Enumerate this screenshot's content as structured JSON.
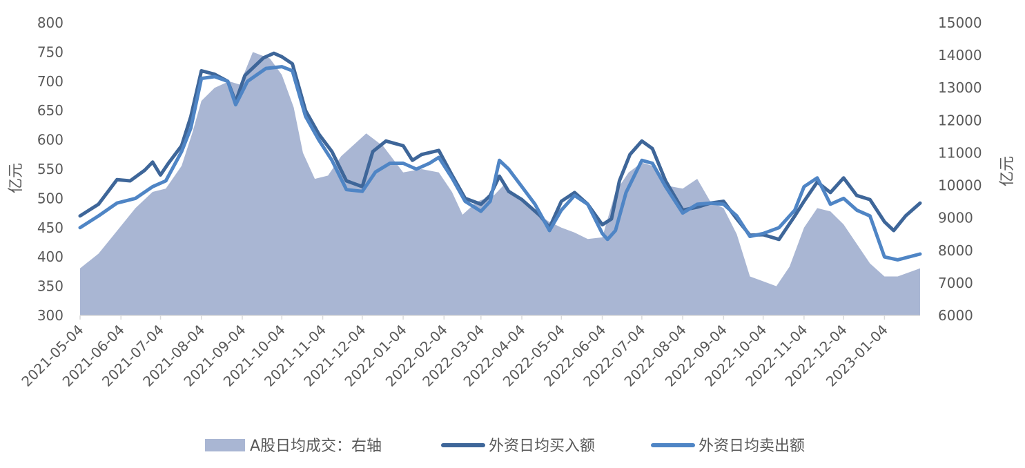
{
  "chart_data": {
    "type": "line",
    "y_left": {
      "label": "亿元",
      "ticks": [
        300,
        350,
        400,
        450,
        500,
        550,
        600,
        650,
        700,
        750,
        800
      ],
      "range": [
        300,
        800
      ]
    },
    "y_right": {
      "label": "亿元",
      "ticks": [
        6000,
        7000,
        8000,
        9000,
        10000,
        11000,
        12000,
        13000,
        14000,
        15000
      ],
      "range": [
        6000,
        15000
      ]
    },
    "x_ticks": [
      "2021-05-04",
      "2021-06-04",
      "2021-07-04",
      "2021-08-04",
      "2021-09-04",
      "2021-10-04",
      "2021-11-04",
      "2021-12-04",
      "2022-01-04",
      "2022-02-04",
      "2022-03-04",
      "2022-04-04",
      "2022-05-04",
      "2022-06-04",
      "2022-07-04",
      "2022-08-04",
      "2022-09-04",
      "2022-10-04",
      "2022-11-04",
      "2022-12-04",
      "2023-01-04"
    ],
    "x_range": [
      "2021-05-04",
      "2023-01-31"
    ],
    "grid": false,
    "legend_position": "bottom",
    "series": [
      {
        "name": "A股日均成交：右轴",
        "type": "area",
        "axis": "right",
        "color": "#a9b6d3",
        "points": [
          [
            "2021-05-04",
            7450
          ],
          [
            "2021-05-18",
            7900
          ],
          [
            "2021-06-01",
            8600
          ],
          [
            "2021-06-15",
            9300
          ],
          [
            "2021-06-28",
            9800
          ],
          [
            "2021-07-08",
            9900
          ],
          [
            "2021-07-20",
            10600
          ],
          [
            "2021-07-28",
            11600
          ],
          [
            "2021-08-04",
            12600
          ],
          [
            "2021-08-14",
            13000
          ],
          [
            "2021-08-25",
            13200
          ],
          [
            "2021-09-02",
            13100
          ],
          [
            "2021-09-12",
            14100
          ],
          [
            "2021-09-25",
            13900
          ],
          [
            "2021-10-04",
            13400
          ],
          [
            "2021-10-13",
            12400
          ],
          [
            "2021-10-20",
            11000
          ],
          [
            "2021-10-29",
            10200
          ],
          [
            "2021-11-08",
            10300
          ],
          [
            "2021-11-18",
            10900
          ],
          [
            "2021-11-29",
            11300
          ],
          [
            "2021-12-07",
            11600
          ],
          [
            "2021-12-20",
            11200
          ],
          [
            "2022-01-04",
            10400
          ],
          [
            "2022-01-18",
            10500
          ],
          [
            "2022-01-31",
            10400
          ],
          [
            "2022-02-10",
            9800
          ],
          [
            "2022-02-18",
            9100
          ],
          [
            "2022-03-01",
            9500
          ],
          [
            "2022-03-14",
            9700
          ],
          [
            "2022-03-21",
            10000
          ],
          [
            "2022-04-04",
            9600
          ],
          [
            "2022-04-14",
            9200
          ],
          [
            "2022-04-24",
            8900
          ],
          [
            "2022-05-04",
            8700
          ],
          [
            "2022-05-14",
            8550
          ],
          [
            "2022-05-24",
            8350
          ],
          [
            "2022-06-04",
            8400
          ],
          [
            "2022-06-14",
            9800
          ],
          [
            "2022-06-24",
            10400
          ],
          [
            "2022-07-04",
            10700
          ],
          [
            "2022-07-12",
            10600
          ],
          [
            "2022-07-22",
            10000
          ],
          [
            "2022-08-04",
            9900
          ],
          [
            "2022-08-15",
            10200
          ],
          [
            "2022-08-25",
            9500
          ],
          [
            "2022-09-04",
            9300
          ],
          [
            "2022-09-14",
            8500
          ],
          [
            "2022-09-24",
            7200
          ],
          [
            "2022-10-04",
            7050
          ],
          [
            "2022-10-14",
            6900
          ],
          [
            "2022-10-24",
            7500
          ],
          [
            "2022-11-04",
            8700
          ],
          [
            "2022-11-14",
            9300
          ],
          [
            "2022-11-24",
            9200
          ],
          [
            "2022-12-04",
            8800
          ],
          [
            "2022-12-14",
            8200
          ],
          [
            "2022-12-24",
            7600
          ],
          [
            "2023-01-04",
            7200
          ],
          [
            "2023-01-14",
            7200
          ],
          [
            "2023-01-31",
            7450
          ]
        ]
      },
      {
        "name": "外资日均买入额",
        "type": "line",
        "axis": "left",
        "color": "#3e6699",
        "points": [
          [
            "2021-05-04",
            470
          ],
          [
            "2021-05-18",
            490
          ],
          [
            "2021-06-01",
            532
          ],
          [
            "2021-06-11",
            530
          ],
          [
            "2021-06-22",
            548
          ],
          [
            "2021-06-28",
            562
          ],
          [
            "2021-07-04",
            540
          ],
          [
            "2021-07-10",
            560
          ],
          [
            "2021-07-20",
            590
          ],
          [
            "2021-07-27",
            640
          ],
          [
            "2021-08-04",
            718
          ],
          [
            "2021-08-14",
            712
          ],
          [
            "2021-08-24",
            700
          ],
          [
            "2021-08-30",
            665
          ],
          [
            "2021-09-06",
            710
          ],
          [
            "2021-09-20",
            740
          ],
          [
            "2021-09-28",
            748
          ],
          [
            "2021-10-04",
            742
          ],
          [
            "2021-10-12",
            730
          ],
          [
            "2021-10-22",
            650
          ],
          [
            "2021-11-01",
            610
          ],
          [
            "2021-11-11",
            580
          ],
          [
            "2021-11-22",
            530
          ],
          [
            "2021-12-04",
            520
          ],
          [
            "2021-12-12",
            580
          ],
          [
            "2021-12-22",
            598
          ],
          [
            "2022-01-04",
            590
          ],
          [
            "2022-01-11",
            565
          ],
          [
            "2022-01-18",
            575
          ],
          [
            "2022-01-31",
            582
          ],
          [
            "2022-02-10",
            540
          ],
          [
            "2022-02-20",
            500
          ],
          [
            "2022-03-04",
            490
          ],
          [
            "2022-03-11",
            505
          ],
          [
            "2022-03-18",
            538
          ],
          [
            "2022-03-25",
            512
          ],
          [
            "2022-04-04",
            498
          ],
          [
            "2022-04-18",
            470
          ],
          [
            "2022-04-25",
            450
          ],
          [
            "2022-05-04",
            495
          ],
          [
            "2022-05-14",
            510
          ],
          [
            "2022-05-24",
            490
          ],
          [
            "2022-06-04",
            455
          ],
          [
            "2022-06-11",
            465
          ],
          [
            "2022-06-17",
            530
          ],
          [
            "2022-06-25",
            575
          ],
          [
            "2022-07-04",
            598
          ],
          [
            "2022-07-12",
            585
          ],
          [
            "2022-07-22",
            530
          ],
          [
            "2022-08-04",
            480
          ],
          [
            "2022-08-15",
            485
          ],
          [
            "2022-08-25",
            492
          ],
          [
            "2022-09-04",
            495
          ],
          [
            "2022-09-14",
            465
          ],
          [
            "2022-09-24",
            437
          ],
          [
            "2022-10-04",
            438
          ],
          [
            "2022-10-16",
            430
          ],
          [
            "2022-10-28",
            470
          ],
          [
            "2022-11-04",
            495
          ],
          [
            "2022-11-14",
            528
          ],
          [
            "2022-11-24",
            510
          ],
          [
            "2022-12-04",
            535
          ],
          [
            "2022-12-14",
            505
          ],
          [
            "2022-12-24",
            498
          ],
          [
            "2023-01-04",
            460
          ],
          [
            "2023-01-11",
            445
          ],
          [
            "2023-01-20",
            470
          ],
          [
            "2023-01-31",
            492
          ]
        ]
      },
      {
        "name": "外资日均卖出额",
        "type": "line",
        "axis": "left",
        "color": "#4f85c5",
        "points": [
          [
            "2021-05-04",
            450
          ],
          [
            "2021-05-18",
            470
          ],
          [
            "2021-06-01",
            492
          ],
          [
            "2021-06-15",
            500
          ],
          [
            "2021-06-28",
            520
          ],
          [
            "2021-07-08",
            530
          ],
          [
            "2021-07-20",
            580
          ],
          [
            "2021-07-27",
            620
          ],
          [
            "2021-08-04",
            705
          ],
          [
            "2021-08-14",
            708
          ],
          [
            "2021-08-24",
            700
          ],
          [
            "2021-08-30",
            660
          ],
          [
            "2021-09-08",
            700
          ],
          [
            "2021-09-22",
            722
          ],
          [
            "2021-10-04",
            725
          ],
          [
            "2021-10-12",
            718
          ],
          [
            "2021-10-22",
            640
          ],
          [
            "2021-11-01",
            600
          ],
          [
            "2021-11-11",
            565
          ],
          [
            "2021-11-22",
            515
          ],
          [
            "2021-12-04",
            512
          ],
          [
            "2021-12-14",
            545
          ],
          [
            "2021-12-25",
            560
          ],
          [
            "2022-01-04",
            560
          ],
          [
            "2022-01-14",
            550
          ],
          [
            "2022-01-24",
            560
          ],
          [
            "2022-01-31",
            570
          ],
          [
            "2022-02-10",
            535
          ],
          [
            "2022-02-20",
            495
          ],
          [
            "2022-03-04",
            478
          ],
          [
            "2022-03-11",
            495
          ],
          [
            "2022-03-18",
            565
          ],
          [
            "2022-03-25",
            550
          ],
          [
            "2022-04-04",
            520
          ],
          [
            "2022-04-14",
            490
          ],
          [
            "2022-04-25",
            445
          ],
          [
            "2022-05-04",
            480
          ],
          [
            "2022-05-14",
            505
          ],
          [
            "2022-05-24",
            490
          ],
          [
            "2022-06-04",
            440
          ],
          [
            "2022-06-08",
            430
          ],
          [
            "2022-06-14",
            445
          ],
          [
            "2022-06-22",
            510
          ],
          [
            "2022-07-04",
            565
          ],
          [
            "2022-07-12",
            560
          ],
          [
            "2022-07-22",
            520
          ],
          [
            "2022-08-04",
            475
          ],
          [
            "2022-08-15",
            490
          ],
          [
            "2022-08-25",
            492
          ],
          [
            "2022-09-04",
            490
          ],
          [
            "2022-09-14",
            470
          ],
          [
            "2022-09-24",
            435
          ],
          [
            "2022-10-04",
            440
          ],
          [
            "2022-10-16",
            450
          ],
          [
            "2022-10-28",
            480
          ],
          [
            "2022-11-04",
            520
          ],
          [
            "2022-11-14",
            535
          ],
          [
            "2022-11-24",
            490
          ],
          [
            "2022-12-04",
            500
          ],
          [
            "2022-12-14",
            480
          ],
          [
            "2022-12-24",
            470
          ],
          [
            "2023-01-04",
            400
          ],
          [
            "2023-01-14",
            395
          ],
          [
            "2023-01-31",
            405
          ]
        ]
      }
    ]
  }
}
